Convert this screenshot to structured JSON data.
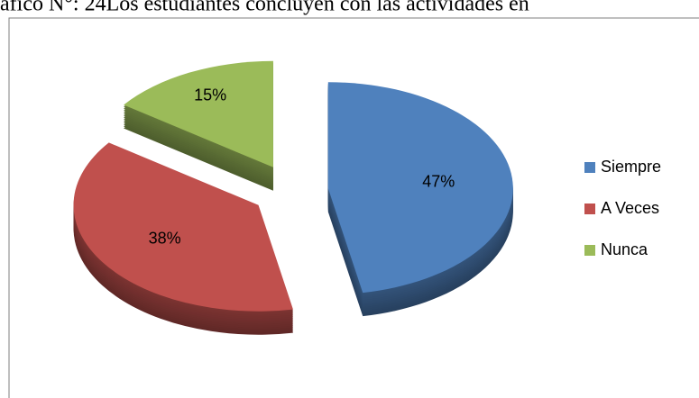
{
  "chart_data": {
    "type": "pie",
    "title": "áfico N°: 24Los estudiantes concluyen con las actividades en",
    "categories": [
      "Siempre",
      "A Veces",
      "Nunca"
    ],
    "values": [
      47,
      38,
      15
    ],
    "value_labels": [
      "47%",
      "38%",
      "15%"
    ],
    "colors": [
      "#4f81bd",
      "#c0504d",
      "#9bbb59"
    ],
    "legend": "right"
  }
}
